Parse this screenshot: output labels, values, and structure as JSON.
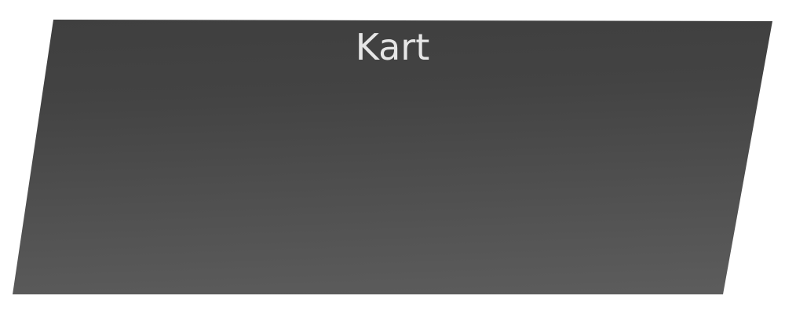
{
  "panel": {
    "title": "Kart"
  },
  "colors": {
    "panel_top": "#3e3e3e",
    "panel_bottom": "#5f5f5f",
    "title_text": "#e6e6e6",
    "background": "#ffffff"
  }
}
